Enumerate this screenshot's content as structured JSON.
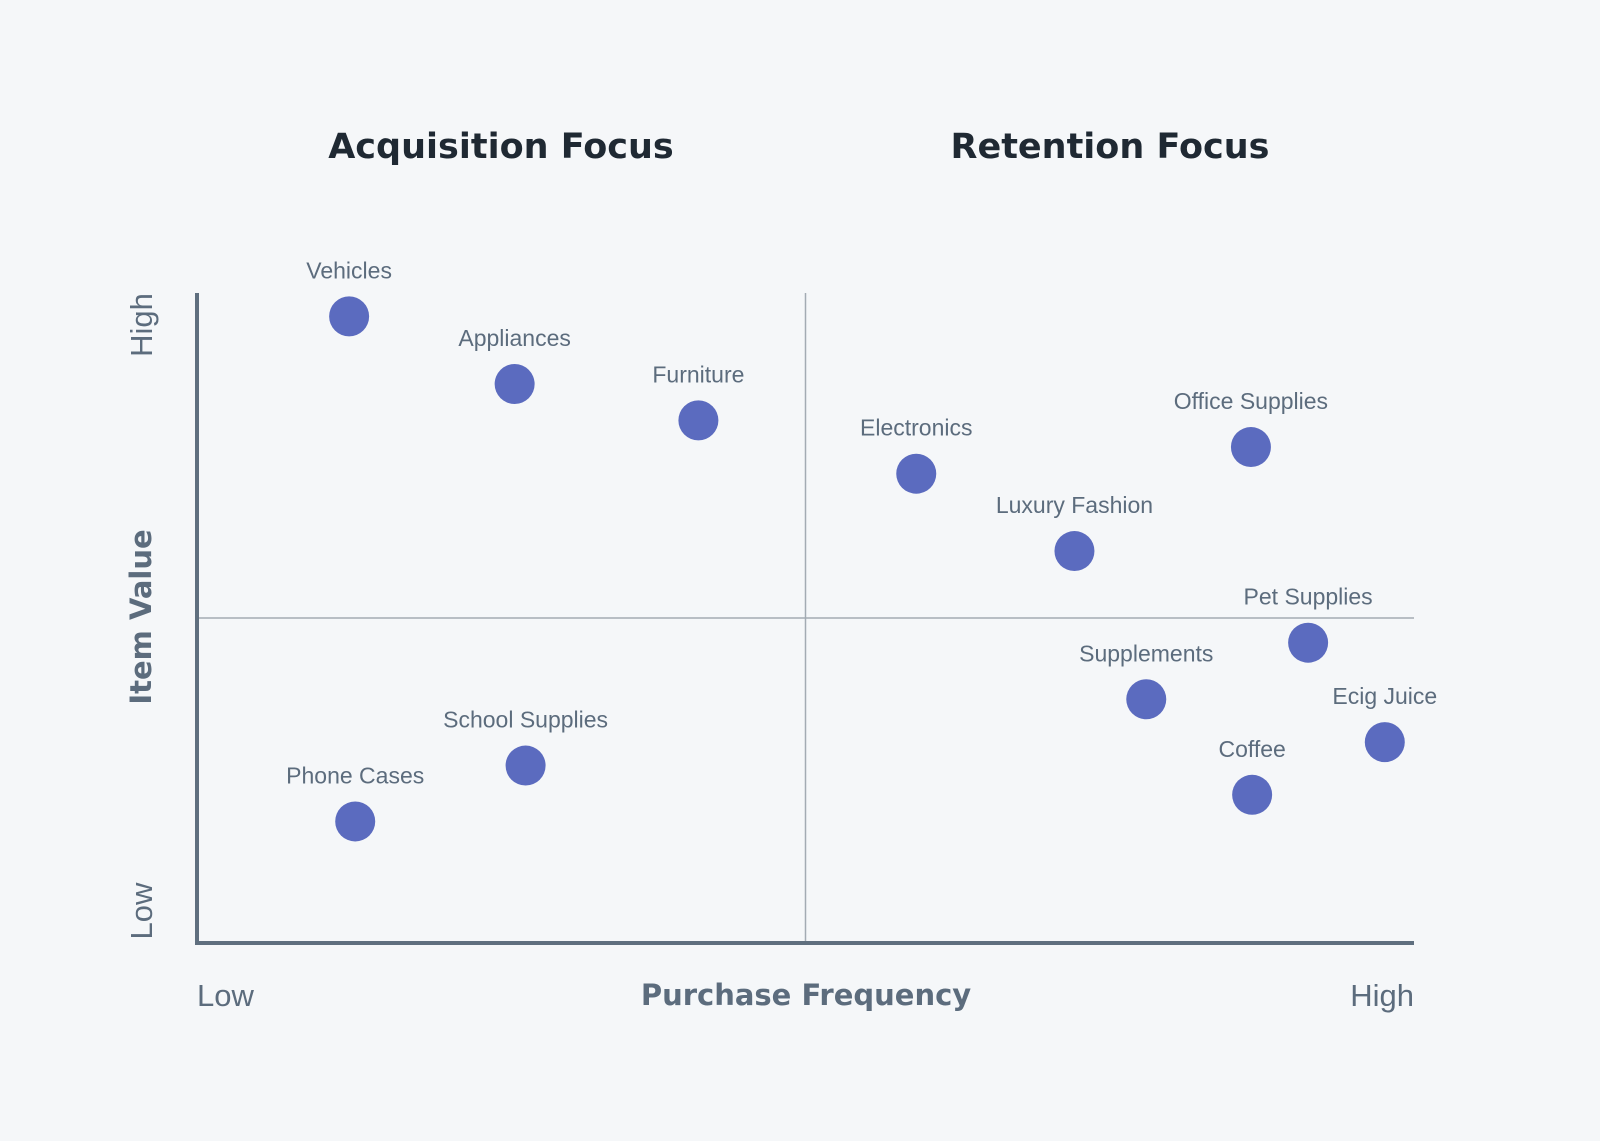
{
  "chart_data": {
    "type": "scatter",
    "quadrant_titles": {
      "left": "Acquisition Focus",
      "right": "Retention Focus"
    },
    "xlabel": "Purchase Frequency",
    "ylabel": "Item Value",
    "x_ticks": {
      "low": "Low",
      "high": "High"
    },
    "y_ticks": {
      "low": "Low",
      "high": "High"
    },
    "xlim": [
      0,
      100
    ],
    "ylim": [
      0,
      100
    ],
    "quadrant_split": {
      "x": 50,
      "y": 50
    },
    "grid": false,
    "colors": {
      "point": "#5b6bbf",
      "axis": "#5f6f7f",
      "divider": "#a3abb3",
      "background": "#f5f7f9"
    },
    "points": [
      {
        "label": "Vehicles",
        "x": 12.5,
        "y": 96.4
      },
      {
        "label": "Appliances",
        "x": 26.1,
        "y": 86.0
      },
      {
        "label": "Furniture",
        "x": 41.2,
        "y": 80.4
      },
      {
        "label": "Electronics",
        "x": 59.1,
        "y": 72.2
      },
      {
        "label": "Office Supplies",
        "x": 86.6,
        "y": 76.3
      },
      {
        "label": "Luxury Fashion",
        "x": 72.1,
        "y": 60.3
      },
      {
        "label": "Pet Supplies",
        "x": 91.3,
        "y": 46.2
      },
      {
        "label": "Supplements",
        "x": 78.0,
        "y": 37.5
      },
      {
        "label": "Ecig Juice",
        "x": 97.6,
        "y": 30.9
      },
      {
        "label": "Coffee",
        "x": 86.7,
        "y": 22.8
      },
      {
        "label": "School Supplies",
        "x": 27.0,
        "y": 27.3
      },
      {
        "label": "Phone Cases",
        "x": 13.0,
        "y": 18.7
      }
    ]
  }
}
